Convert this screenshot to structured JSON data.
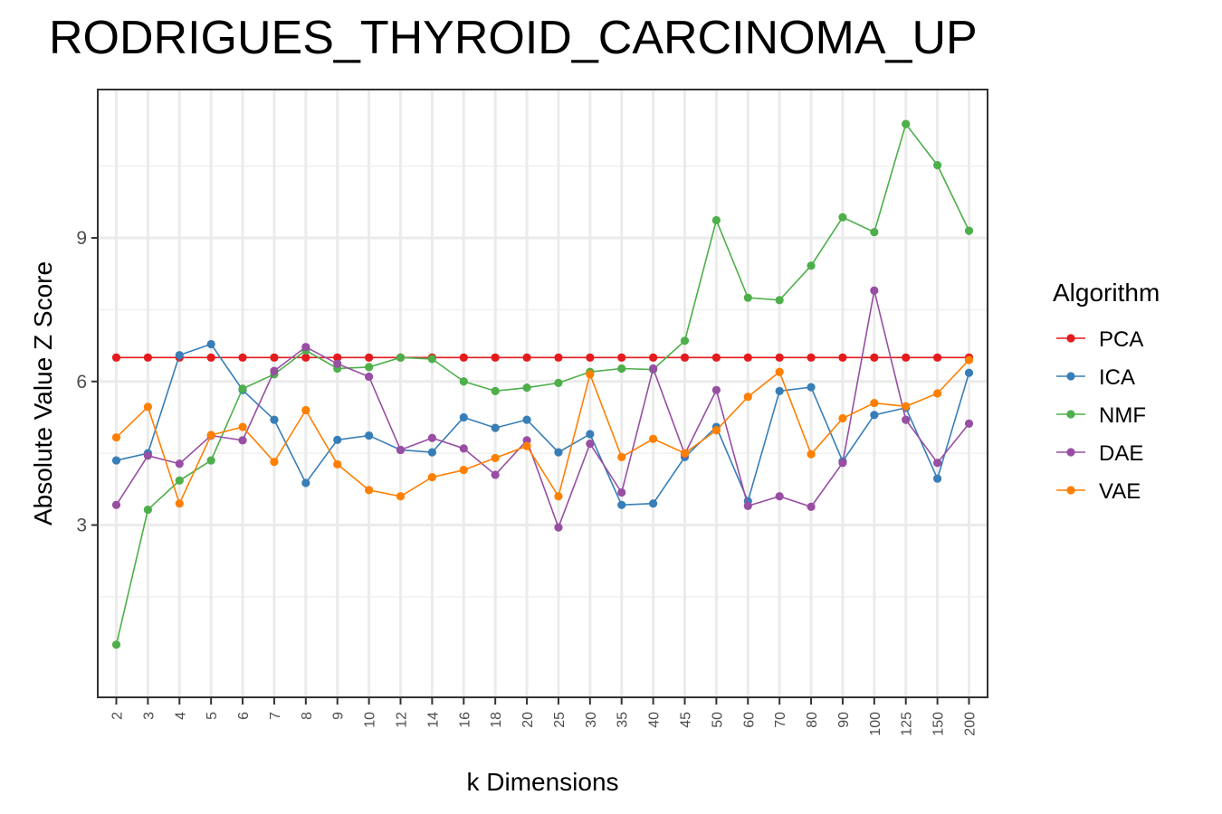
{
  "chart_data": {
    "type": "line",
    "title": "RODRIGUES_THYROID_CARCINOMA_UP",
    "xlabel": "k Dimensions",
    "ylabel": "Absolute Value Z Score",
    "categories": [
      "2",
      "3",
      "4",
      "5",
      "6",
      "7",
      "8",
      "9",
      "10",
      "12",
      "14",
      "16",
      "18",
      "20",
      "25",
      "30",
      "35",
      "40",
      "45",
      "50",
      "60",
      "70",
      "80",
      "90",
      "100",
      "125",
      "150",
      "200"
    ],
    "yticks": [
      3,
      6,
      9
    ],
    "ylim": [
      -0.6,
      12.1
    ],
    "grid": true,
    "legend_title": "Algorithm",
    "legend_position": "right",
    "series": [
      {
        "name": "PCA",
        "color": "#e41a1c",
        "values": [
          6.5,
          6.5,
          6.5,
          6.5,
          6.5,
          6.5,
          6.5,
          6.5,
          6.5,
          6.5,
          6.5,
          6.5,
          6.5,
          6.5,
          6.5,
          6.5,
          6.5,
          6.5,
          6.5,
          6.5,
          6.5,
          6.5,
          6.5,
          6.5,
          6.5,
          6.5,
          6.5,
          6.5
        ]
      },
      {
        "name": "ICA",
        "color": "#377eb8",
        "values": [
          4.35,
          4.5,
          6.55,
          6.78,
          5.82,
          5.2,
          3.88,
          4.78,
          4.87,
          4.57,
          4.52,
          5.25,
          5.03,
          5.2,
          4.52,
          4.9,
          3.42,
          3.45,
          4.42,
          5.05,
          3.5,
          5.8,
          5.88,
          4.33,
          5.3,
          5.45,
          3.97,
          6.18
        ]
      },
      {
        "name": "NMF",
        "color": "#4daf4a",
        "values": [
          0.5,
          3.32,
          3.93,
          4.35,
          5.85,
          6.15,
          6.65,
          6.27,
          6.3,
          6.5,
          6.47,
          6.0,
          5.8,
          5.87,
          5.97,
          6.2,
          6.27,
          6.25,
          6.85,
          9.37,
          7.75,
          7.7,
          8.42,
          9.43,
          9.12,
          11.38,
          10.52,
          9.15
        ]
      },
      {
        "name": "DAE",
        "color": "#984ea3",
        "values": [
          3.42,
          4.45,
          4.28,
          4.87,
          4.77,
          6.22,
          6.72,
          6.37,
          6.1,
          4.57,
          4.82,
          4.6,
          4.05,
          4.77,
          2.95,
          4.7,
          3.68,
          6.27,
          4.48,
          5.82,
          3.4,
          3.6,
          3.38,
          4.3,
          7.9,
          5.2,
          4.3,
          5.12
        ]
      },
      {
        "name": "VAE",
        "color": "#ff7f00",
        "values": [
          4.83,
          5.47,
          3.45,
          4.88,
          5.05,
          4.32,
          5.4,
          4.27,
          3.73,
          3.6,
          4.0,
          4.15,
          4.4,
          4.65,
          3.6,
          6.15,
          4.42,
          4.8,
          4.5,
          4.98,
          5.68,
          6.2,
          4.48,
          5.23,
          5.55,
          5.48,
          5.75,
          6.45
        ]
      }
    ]
  }
}
